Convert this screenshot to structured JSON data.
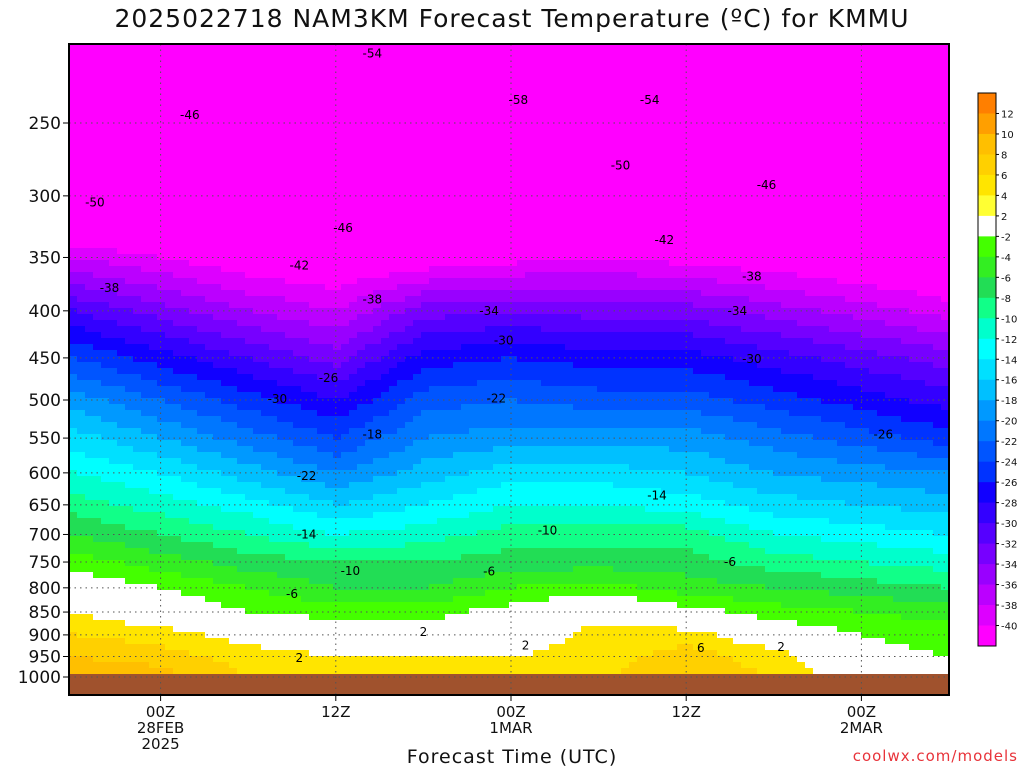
{
  "title": "2025022718 NAM3KM Forecast Temperature (ºC) for KMMU",
  "xlabel": "Forecast Time (UTC)",
  "credit": "coolwx.com/models",
  "chart_data": {
    "type": "heatmap",
    "title": "2025022718 NAM3KM Forecast Temperature (ºC) for KMMU",
    "xlabel": "Forecast Time (UTC)",
    "ylabel": "",
    "x_ticks": [
      {
        "hour": 6,
        "lines": [
          "00Z",
          "28FEB",
          "2025"
        ]
      },
      {
        "hour": 18,
        "lines": [
          "12Z"
        ]
      },
      {
        "hour": 30,
        "lines": [
          "00Z",
          "1MAR"
        ]
      },
      {
        "hour": 42,
        "lines": [
          "12Z"
        ]
      },
      {
        "hour": 54,
        "lines": [
          "00Z",
          "2MAR"
        ]
      }
    ],
    "xlim": [
      0,
      60
    ],
    "y_ticks": [
      250,
      300,
      350,
      400,
      450,
      500,
      550,
      600,
      650,
      700,
      750,
      800,
      850,
      900,
      950,
      1000
    ],
    "ylim": [
      1013,
      200
    ],
    "y_scale": "log-pressure (hPa)",
    "grid": true,
    "colorbar": {
      "ticks": [
        "12",
        "10",
        "8",
        "6",
        "4",
        "2",
        "-2",
        "-4",
        "-6",
        "-8",
        "-10",
        "-12",
        "-14",
        "-16",
        "-18",
        "-20",
        "-22",
        "-24",
        "-26",
        "-28",
        "-30",
        "-32",
        "-34",
        "-36",
        "-38",
        "-40"
      ],
      "colors": [
        "#ff7f00",
        "#ff9f00",
        "#ffbf00",
        "#ffd000",
        "#ffe500",
        "#ffff33",
        "#ffffff",
        "#44ff00",
        "#33ee22",
        "#22dd55",
        "#11ff88",
        "#00ffcc",
        "#00ffff",
        "#00e0ff",
        "#00c0ff",
        "#0099ff",
        "#0077ff",
        "#0055ff",
        "#0033ff",
        "#1100ff",
        "#3300ff",
        "#5500ff",
        "#7700ff",
        "#9900ff",
        "#bb00ff",
        "#dd00ff",
        "#ff00ff"
      ]
    },
    "temperature_field": {
      "x_hours": [
        0,
        6,
        12,
        18,
        24,
        30,
        36,
        42,
        48,
        54,
        60
      ],
      "pressure_levels": [
        1000,
        950,
        900,
        850,
        800,
        750,
        700,
        650,
        600,
        550,
        500,
        450,
        400,
        350,
        300,
        250
      ],
      "values": [
        [
          8,
          7,
          4,
          3,
          3,
          3,
          4,
          5,
          4,
          0,
          -1
        ],
        [
          6,
          5,
          3,
          2,
          2,
          2,
          3,
          5,
          3,
          -1,
          -2
        ],
        [
          4,
          3,
          1,
          0,
          0,
          0,
          3,
          3,
          0,
          -2,
          -3
        ],
        [
          2,
          0,
          -2,
          -3,
          -3,
          -1,
          1,
          -1,
          -3,
          -4,
          -5
        ],
        [
          0,
          -2,
          -4,
          -6,
          -6,
          -4,
          -3,
          -5,
          -6,
          -7,
          -8
        ],
        [
          -3,
          -5,
          -7,
          -8,
          -8,
          -7,
          -7,
          -7,
          -9,
          -10,
          -11
        ],
        [
          -6,
          -8,
          -10,
          -12,
          -11,
          -9,
          -9,
          -9,
          -12,
          -13,
          -14
        ],
        [
          -9,
          -11,
          -13,
          -16,
          -14,
          -12,
          -12,
          -13,
          -15,
          -16,
          -17
        ],
        [
          -12,
          -14,
          -17,
          -20,
          -17,
          -15,
          -15,
          -16,
          -18,
          -19,
          -20
        ],
        [
          -15,
          -18,
          -21,
          -24,
          -20,
          -19,
          -19,
          -19,
          -21,
          -23,
          -25
        ],
        [
          -19,
          -22,
          -25,
          -28,
          -23,
          -22,
          -23,
          -23,
          -25,
          -27,
          -29
        ],
        [
          -24,
          -27,
          -30,
          -33,
          -27,
          -26,
          -27,
          -27,
          -29,
          -31,
          -33
        ],
        [
          -30,
          -33,
          -36,
          -38,
          -33,
          -32,
          -33,
          -33,
          -35,
          -37,
          -39
        ],
        [
          -38,
          -40,
          -42,
          -43,
          -42,
          -41,
          -40,
          -41,
          -42,
          -43,
          -44
        ],
        [
          -48,
          -48,
          -48,
          -48,
          -48,
          -49,
          -49,
          -48,
          -48,
          -47,
          -47
        ],
        [
          -46,
          -46,
          -48,
          -52,
          -54,
          -58,
          -56,
          -54,
          -52,
          -52,
          -52
        ]
      ]
    },
    "contour_labels": [
      {
        "text": "-54",
        "hour": 20.5,
        "p": 210
      },
      {
        "text": "-58",
        "hour": 30.5,
        "p": 236
      },
      {
        "text": "-54",
        "hour": 39.5,
        "p": 236
      },
      {
        "text": "-46",
        "hour": 8,
        "p": 245
      },
      {
        "text": "-50",
        "hour": 37.5,
        "p": 278
      },
      {
        "text": "-46",
        "hour": 47.5,
        "p": 292
      },
      {
        "text": "-50",
        "hour": 1.5,
        "p": 305
      },
      {
        "text": "-46",
        "hour": 18.5,
        "p": 325
      },
      {
        "text": "-42",
        "hour": 40.5,
        "p": 335
      },
      {
        "text": "-42",
        "hour": 15.5,
        "p": 357
      },
      {
        "text": "-38",
        "hour": 46.5,
        "p": 367
      },
      {
        "text": "-38",
        "hour": 2.5,
        "p": 378
      },
      {
        "text": "-38",
        "hour": 20.5,
        "p": 389
      },
      {
        "text": "-34",
        "hour": 28.5,
        "p": 400
      },
      {
        "text": "-34",
        "hour": 45.5,
        "p": 400
      },
      {
        "text": "-30",
        "hour": 29.5,
        "p": 431
      },
      {
        "text": "-30",
        "hour": 46.5,
        "p": 451
      },
      {
        "text": "-26",
        "hour": 17.5,
        "p": 473
      },
      {
        "text": "-30",
        "hour": 14,
        "p": 499
      },
      {
        "text": "-22",
        "hour": 29,
        "p": 498
      },
      {
        "text": "-18",
        "hour": 20.5,
        "p": 545
      },
      {
        "text": "-26",
        "hour": 55.5,
        "p": 545
      },
      {
        "text": "-22",
        "hour": 16,
        "p": 605
      },
      {
        "text": "-14",
        "hour": 40,
        "p": 635
      },
      {
        "text": "-10",
        "hour": 32.5,
        "p": 693
      },
      {
        "text": "-14",
        "hour": 16,
        "p": 700
      },
      {
        "text": "-6",
        "hour": 45,
        "p": 750
      },
      {
        "text": "-6",
        "hour": 28.5,
        "p": 768
      },
      {
        "text": "-10",
        "hour": 19,
        "p": 767
      },
      {
        "text": "-6",
        "hour": 15,
        "p": 812
      },
      {
        "text": "2",
        "hour": 24,
        "p": 893
      },
      {
        "text": "2",
        "hour": 31,
        "p": 924
      },
      {
        "text": "6",
        "hour": 43,
        "p": 930
      },
      {
        "text": "2",
        "hour": 48.5,
        "p": 928
      },
      {
        "text": "2",
        "hour": 15.5,
        "p": 953
      }
    ]
  }
}
